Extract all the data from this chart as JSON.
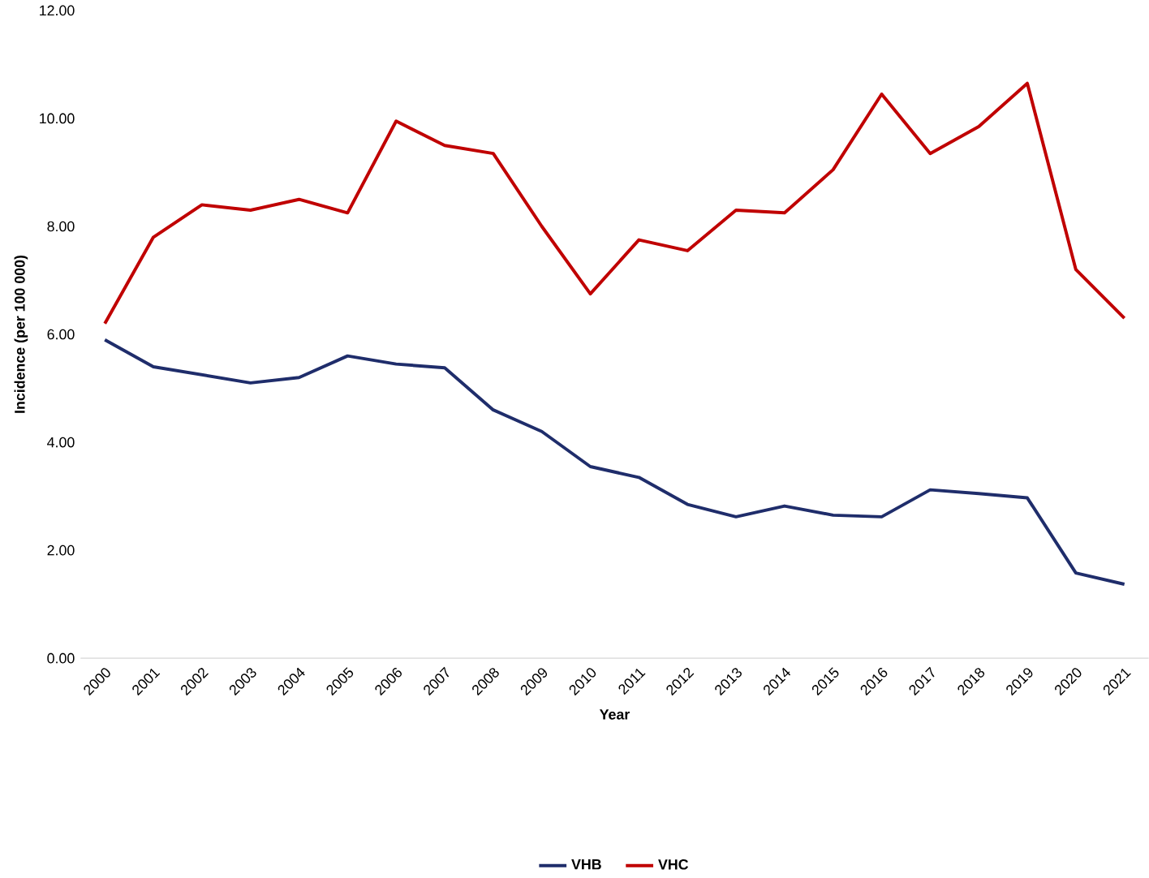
{
  "chart_data": {
    "type": "line",
    "xlabel": "Year",
    "ylabel": "Incidence (per 100 000)",
    "categories": [
      "2000",
      "2001",
      "2002",
      "2003",
      "2004",
      "2005",
      "2006",
      "2007",
      "2008",
      "2009",
      "2010",
      "2011",
      "2012",
      "2013",
      "2014",
      "2015",
      "2016",
      "2017",
      "2018",
      "2019",
      "2020",
      "2021"
    ],
    "series": [
      {
        "name": "VHB",
        "color": "#1f2d6b",
        "values": [
          5.9,
          5.4,
          5.25,
          5.1,
          5.2,
          5.6,
          5.45,
          5.38,
          4.6,
          4.2,
          3.55,
          3.35,
          2.85,
          2.62,
          2.82,
          2.65,
          2.62,
          3.12,
          3.05,
          2.97,
          1.58,
          1.37
        ]
      },
      {
        "name": "VHC",
        "color": "#c00000",
        "values": [
          6.2,
          7.8,
          8.4,
          8.3,
          8.5,
          8.25,
          9.95,
          9.5,
          9.35,
          8.0,
          6.75,
          7.75,
          7.55,
          8.3,
          8.25,
          9.05,
          10.45,
          9.35,
          9.85,
          10.65,
          7.2,
          6.3
        ]
      }
    ],
    "ylim": [
      0,
      12
    ],
    "yticks": [
      {
        "value": 0,
        "label": "0.00"
      },
      {
        "value": 2,
        "label": "2.00"
      },
      {
        "value": 4,
        "label": "4.00"
      },
      {
        "value": 6,
        "label": "6.00"
      },
      {
        "value": 8,
        "label": "8.00"
      },
      {
        "value": 10,
        "label": "10.00"
      },
      {
        "value": 12,
        "label": "12.00"
      }
    ],
    "legend": "bottom",
    "marker": "none",
    "line_style": "solid"
  }
}
